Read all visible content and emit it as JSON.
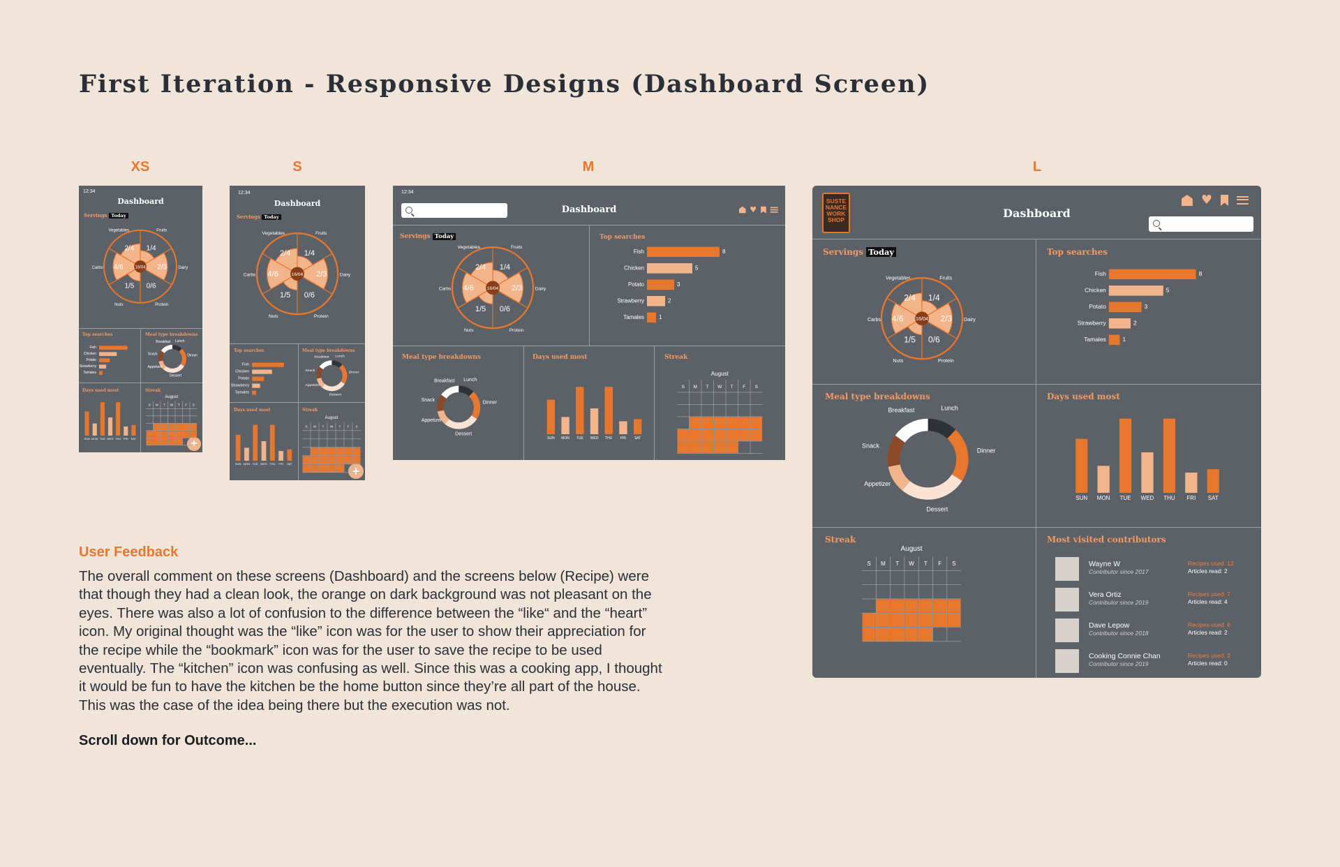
{
  "page": {
    "title": "First Iteration - Responsive Designs (Dashboard Screen)",
    "breakpoints": [
      "XS",
      "S",
      "M",
      "L"
    ]
  },
  "app": {
    "time": "12:34",
    "screen_title": "Dashboard",
    "servings_label": "Servings",
    "today_badge": "Today",
    "servings_center": "16/04",
    "top_searches_label": "Top searches",
    "meal_type_label": "Meal type breakdowns",
    "days_used_label": "Days used most",
    "streak_label": "Streak",
    "streak_month": "August",
    "contributors_label": "Most visited contributors",
    "logo_text": [
      "SUSTE",
      "NANCE",
      "WORK",
      "SHOP"
    ],
    "fab_label": "+"
  },
  "chart_data": [
    {
      "type": "pie",
      "title": "Servings",
      "center_label": "16/04",
      "categories": [
        "Fruits",
        "Dairy",
        "Protein",
        "Nuts",
        "Carbs",
        "Vegetables"
      ],
      "labels": [
        "1/4",
        "2/3",
        "0/6",
        "1/5",
        "4/6",
        "2/4"
      ],
      "values": [
        0.25,
        0.667,
        0,
        0.2,
        0.667,
        0.5
      ]
    },
    {
      "type": "bar",
      "title": "Top searches",
      "orientation": "horizontal",
      "categories": [
        "Fish",
        "Chicken",
        "Potato",
        "Strawberry",
        "Tamales"
      ],
      "values": [
        8,
        5,
        3,
        2,
        1
      ],
      "colors": [
        "#e8772e",
        "#f2b48a",
        "#e8772e",
        "#f2b48a",
        "#e8772e"
      ]
    },
    {
      "type": "pie",
      "title": "Meal type breakdowns",
      "donut": true,
      "categories": [
        "Lunch",
        "Dinner",
        "Dessert",
        "Appetizer",
        "Snack",
        "Breakfast"
      ],
      "values": [
        12,
        22,
        27,
        11,
        13,
        15
      ],
      "colors": [
        "#2e3338",
        "#e8772e",
        "#fbe3d3",
        "#f2b48a",
        "#8a4a2a",
        "#ffffff"
      ]
    },
    {
      "type": "bar",
      "title": "Days used most",
      "categories": [
        "SUN",
        "MON",
        "TUE",
        "WED",
        "THU",
        "FRI",
        "SAT"
      ],
      "values": [
        8,
        4,
        11,
        6,
        11,
        3,
        3.5
      ],
      "colors": [
        "#e8772e",
        "#f2b48a",
        "#e8772e",
        "#f2b48a",
        "#e8772e",
        "#f2b48a",
        "#e8772e"
      ]
    },
    {
      "type": "heatmap",
      "title": "Streak",
      "month": "August",
      "weekdays": [
        "S",
        "M",
        "T",
        "W",
        "T",
        "F",
        "S"
      ],
      "filled_days_per_week": [
        [
          0,
          0,
          0,
          0,
          0,
          0,
          0
        ],
        [
          0,
          0,
          0,
          0,
          0,
          0,
          0
        ],
        [
          0,
          1,
          1,
          1,
          1,
          1,
          1
        ],
        [
          1,
          1,
          1,
          1,
          1,
          1,
          1
        ],
        [
          1,
          1,
          1,
          1,
          1,
          0,
          0
        ]
      ]
    }
  ],
  "contributors": [
    {
      "name": "Wayne W",
      "since": "Contributor since 2017",
      "recipes": "Recipes used: 12",
      "articles": "Articles read: 2"
    },
    {
      "name": "Vera Ortiz",
      "since": "Contributor since 2019",
      "recipes": "Recipes used: 7",
      "articles": "Articles read: 4"
    },
    {
      "name": "Dave Lepow",
      "since": "Contributor since 2018",
      "recipes": "Recipes used: 6",
      "articles": "Articles read: 2"
    },
    {
      "name": "Cooking Connie Chan",
      "since": "Contributor since 2019",
      "recipes": "Recipes used: 2",
      "articles": "Articles read: 0"
    }
  ],
  "feedback": {
    "heading": "User Feedback",
    "body": "The overall comment on these screens (Dashboard) and the screens below (Recipe) were that though they had a clean look, the orange on dark background was not pleasant on the eyes. There was also a lot of confusion to the difference between the “like“ and the “heart” icon. My original thought was the “like” icon was for the user to show their appreciation for the recipe while the “bookmark” icon was for the user to save the recipe to be used eventually. The “kitchen” icon was confusing as well. Since this was a cooking app, I thought it would be fun to have the kitchen be the home button since they’re all part of the house. This was the case of the idea being there but the execution was not.",
    "cta": "Scroll down for Outcome..."
  },
  "colors": {
    "background": "#f1e4d8",
    "device": "#5c6067",
    "accent": "#e8772e",
    "accent_light": "#f2b48a",
    "heading": "#2a2f38"
  }
}
